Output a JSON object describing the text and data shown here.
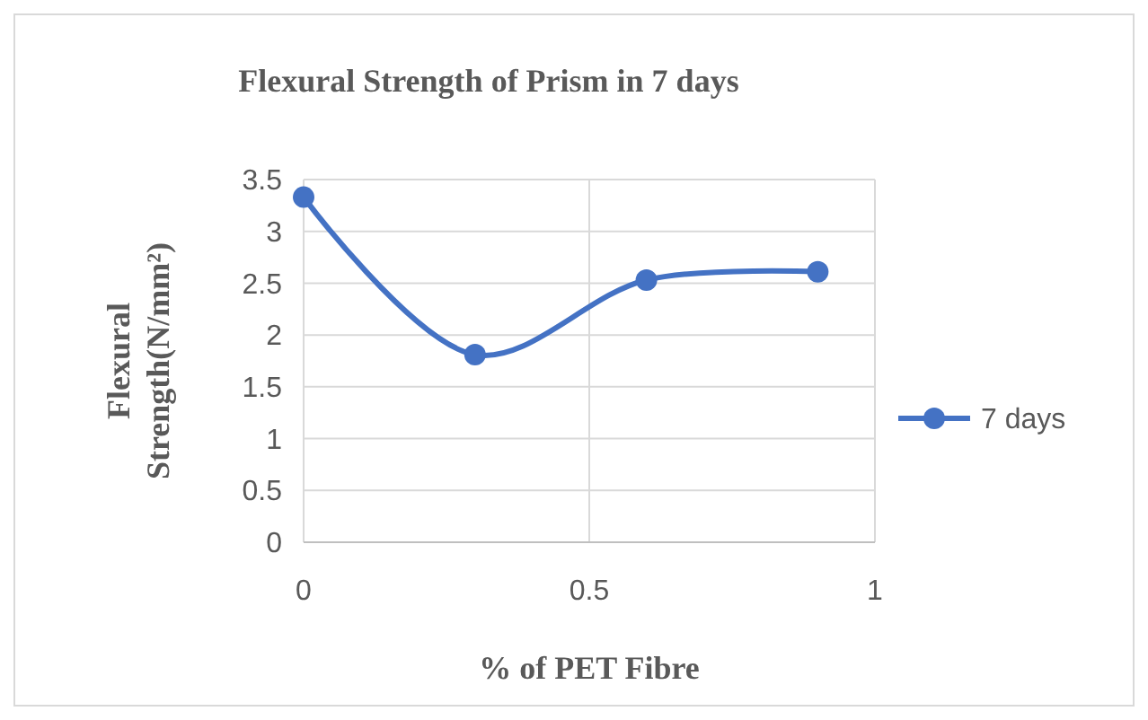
{
  "chart_data": {
    "type": "line",
    "title": "Flexural Strength of Prism in 7 days",
    "xlabel": "% of PET Fibre",
    "ylabel": "Flexural Strength(N/mm²)",
    "x": [
      0,
      0.3,
      0.6,
      0.9
    ],
    "series": [
      {
        "name": "7 days",
        "color": "#4472c4",
        "values": [
          3.33,
          1.81,
          2.53,
          2.61
        ]
      }
    ],
    "xlim": [
      0,
      1
    ],
    "xticks": [
      0,
      0.5,
      1
    ],
    "ylim": [
      0,
      3.5
    ],
    "yticks": [
      0,
      0.5,
      1,
      1.5,
      2,
      2.5,
      3,
      3.5
    ],
    "grid": true,
    "legend": "right",
    "marker": "circle",
    "line_style": "solid"
  }
}
